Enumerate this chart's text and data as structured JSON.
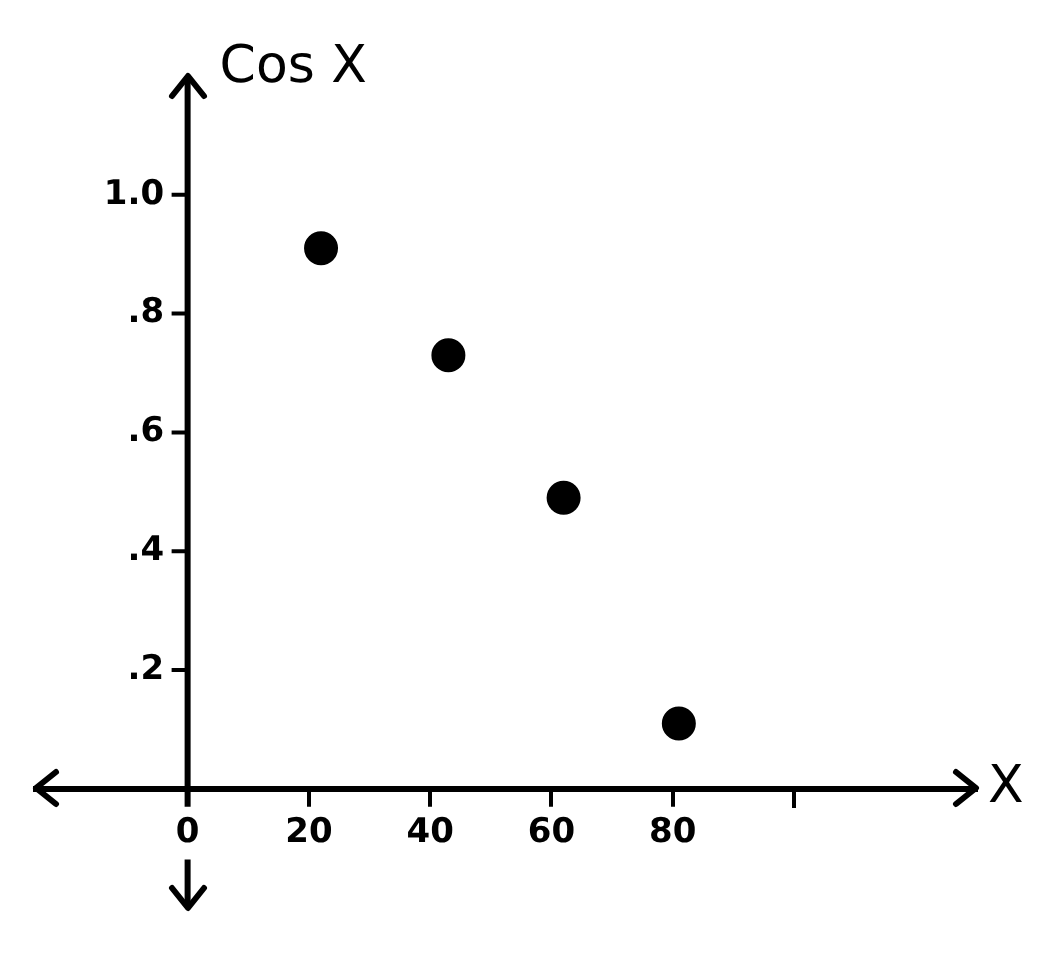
{
  "chart_data": {
    "type": "scatter",
    "xlabel": "X",
    "ylabel": "Cos X",
    "x": [
      22,
      43,
      62,
      81
    ],
    "values": [
      0.91,
      0.73,
      0.49,
      0.11
    ],
    "color": "#000000",
    "marker": "circle",
    "xlim": [
      -25,
      130
    ],
    "ylim": [
      -0.2,
      1.2
    ],
    "xticks": [
      0,
      20,
      40,
      60,
      80,
      {
        "value": 100,
        "label": null
      }
    ],
    "yticks": [
      {
        "value": 0.2,
        "label": ".2"
      },
      {
        "value": 0.4,
        "label": ".4"
      },
      {
        "value": 0.6,
        "label": ".6"
      },
      {
        "value": 0.8,
        "label": ".8"
      },
      {
        "value": 1.0,
        "label": "1.0"
      }
    ],
    "grid": false,
    "legend": false
  }
}
